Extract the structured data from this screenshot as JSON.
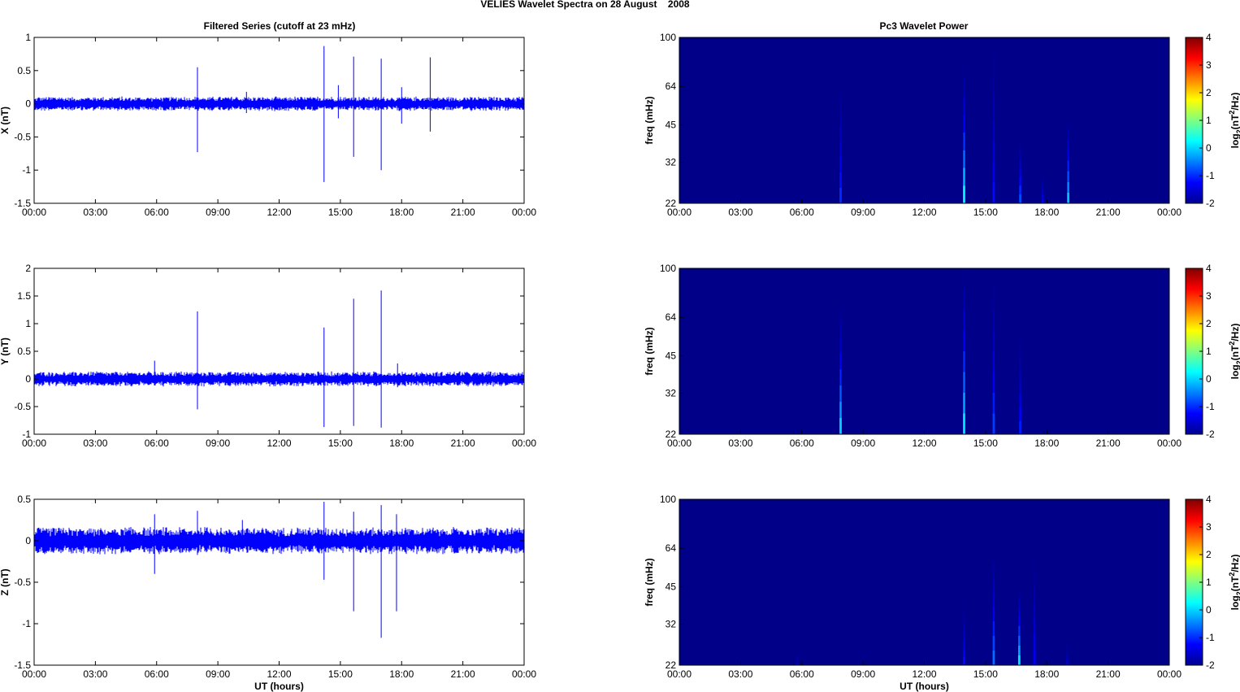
{
  "figure": {
    "title": "VELIES Wavelet Spectra on 28 August    2008",
    "left_column_title": "Filtered Series (cutoff at 23 mHz)",
    "right_column_title": "Pc3 Wavelet Power"
  },
  "chart_data": [
    {
      "type": "line",
      "component": "X",
      "ylabel": "X (nT)",
      "xlabel": "",
      "x_ticks": [
        "00:00",
        "03:00",
        "06:00",
        "09:00",
        "12:00",
        "15:00",
        "18:00",
        "21:00",
        "00:00"
      ],
      "xlim": [
        0,
        24
      ],
      "ylim": [
        -1.5,
        1
      ],
      "y_ticks": [
        1,
        0.5,
        0,
        -0.5,
        -1,
        -1.5
      ],
      "baseline_band": 0.08,
      "spikes": [
        {
          "t": 8.0,
          "max": 0.55,
          "min": -0.73
        },
        {
          "t": 14.2,
          "max": 0.87,
          "min": -1.18
        },
        {
          "t": 15.65,
          "max": 0.71,
          "min": -0.8
        },
        {
          "t": 17.0,
          "max": 0.68,
          "min": -1.0
        },
        {
          "t": 19.4,
          "max": 0.7,
          "min": -0.42
        },
        {
          "t": 14.9,
          "max": 0.28,
          "min": -0.22
        },
        {
          "t": 18.0,
          "max": 0.25,
          "min": -0.3
        },
        {
          "t": 10.4,
          "max": 0.18,
          "min": -0.14
        }
      ]
    },
    {
      "type": "line",
      "component": "Y",
      "ylabel": "Y (nT)",
      "xlabel": "",
      "x_ticks": [
        "00:00",
        "03:00",
        "06:00",
        "09:00",
        "12:00",
        "15:00",
        "18:00",
        "21:00",
        "00:00"
      ],
      "xlim": [
        0,
        24
      ],
      "ylim": [
        -1,
        2
      ],
      "y_ticks": [
        2,
        1.5,
        1,
        0.5,
        0,
        -0.5,
        -1
      ],
      "baseline_band": 0.1,
      "spikes": [
        {
          "t": 8.0,
          "max": 1.22,
          "min": -0.55
        },
        {
          "t": 14.2,
          "max": 0.93,
          "min": -0.87
        },
        {
          "t": 15.65,
          "max": 1.45,
          "min": -0.85
        },
        {
          "t": 17.0,
          "max": 1.6,
          "min": -0.88
        },
        {
          "t": 5.9,
          "max": 0.33,
          "min": -0.1
        },
        {
          "t": 17.8,
          "max": 0.28,
          "min": -0.15
        }
      ]
    },
    {
      "type": "line",
      "component": "Z",
      "ylabel": "Z (nT)",
      "xlabel": "UT (hours)",
      "x_ticks": [
        "00:00",
        "03:00",
        "06:00",
        "09:00",
        "12:00",
        "15:00",
        "18:00",
        "21:00",
        "00:00"
      ],
      "xlim": [
        0,
        24
      ],
      "ylim": [
        -1.5,
        0.5
      ],
      "y_ticks": [
        0.5,
        0,
        -0.5,
        -1,
        -1.5
      ],
      "baseline_band": 0.12,
      "spikes": [
        {
          "t": 5.9,
          "max": 0.32,
          "min": -0.4
        },
        {
          "t": 8.0,
          "max": 0.36,
          "min": -0.17
        },
        {
          "t": 14.2,
          "max": 0.47,
          "min": -0.47
        },
        {
          "t": 15.65,
          "max": 0.35,
          "min": -0.85
        },
        {
          "t": 17.0,
          "max": 0.43,
          "min": -1.17
        },
        {
          "t": 17.75,
          "max": 0.32,
          "min": -0.85
        },
        {
          "t": 10.2,
          "max": 0.25,
          "min": -0.1
        }
      ]
    },
    {
      "type": "heatmap",
      "component": "X",
      "ylabel": "freq (mHz)",
      "xlabel": "",
      "x_ticks": [
        "00:00",
        "03:00",
        "06:00",
        "09:00",
        "12:00",
        "15:00",
        "18:00",
        "21:00",
        "00:00"
      ],
      "xlim": [
        0,
        24
      ],
      "ylim": [
        22,
        100
      ],
      "y_scale": "log",
      "y_ticks": [
        100,
        64,
        45,
        32,
        22
      ],
      "colorbar_label": "log2(nT^2/Hz)",
      "colorbar_range": [
        -2,
        4
      ],
      "colorbar_ticks": [
        4,
        3,
        2,
        1,
        0,
        -1,
        -2
      ],
      "colormap": "jet",
      "background_value": -1.95,
      "streaks": [
        {
          "t": 7.9,
          "f_top": 68,
          "peak": -1.0
        },
        {
          "t": 13.95,
          "f_top": 80,
          "peak": 0.2
        },
        {
          "t": 15.4,
          "f_top": 100,
          "peak": -1.2
        },
        {
          "t": 16.7,
          "f_top": 42,
          "peak": -0.8
        },
        {
          "t": 17.8,
          "f_top": 30,
          "peak": -1.4
        },
        {
          "t": 19.05,
          "f_top": 48,
          "peak": -0.1
        }
      ]
    },
    {
      "type": "heatmap",
      "component": "Y",
      "ylabel": "freq (mHz)",
      "xlabel": "",
      "x_ticks": [
        "00:00",
        "03:00",
        "06:00",
        "09:00",
        "12:00",
        "15:00",
        "18:00",
        "21:00",
        "00:00"
      ],
      "xlim": [
        0,
        24
      ],
      "ylim": [
        22,
        100
      ],
      "y_scale": "log",
      "y_ticks": [
        100,
        64,
        45,
        32,
        22
      ],
      "colorbar_label": "log2(nT^2/Hz)",
      "colorbar_range": [
        -2,
        4
      ],
      "colorbar_ticks": [
        4,
        3,
        2,
        1,
        0,
        -1,
        -2
      ],
      "colormap": "jet",
      "background_value": -1.95,
      "streaks": [
        {
          "t": 7.9,
          "f_top": 72,
          "peak": 0.0
        },
        {
          "t": 13.95,
          "f_top": 100,
          "peak": 0.1
        },
        {
          "t": 15.4,
          "f_top": 100,
          "peak": -0.9
        },
        {
          "t": 16.7,
          "f_top": 58,
          "peak": -1.1
        }
      ]
    },
    {
      "type": "heatmap",
      "component": "Z",
      "ylabel": "freq (mHz)",
      "xlabel": "UT (hours)",
      "x_ticks": [
        "00:00",
        "03:00",
        "06:00",
        "09:00",
        "12:00",
        "15:00",
        "18:00",
        "21:00",
        "00:00"
      ],
      "xlim": [
        0,
        24
      ],
      "ylim": [
        22,
        100
      ],
      "y_scale": "log",
      "y_ticks": [
        100,
        64,
        45,
        32,
        22
      ],
      "colorbar_label": "log2(nT^2/Hz)",
      "colorbar_range": [
        -2,
        4
      ],
      "colorbar_ticks": [
        4,
        3,
        2,
        1,
        0,
        -1,
        -2
      ],
      "colormap": "jet",
      "background_value": -1.95,
      "streaks": [
        {
          "t": 5.8,
          "f_top": 26,
          "peak": -1.7
        },
        {
          "t": 13.95,
          "f_top": 40,
          "peak": -1.2
        },
        {
          "t": 15.4,
          "f_top": 64,
          "peak": -0.6
        },
        {
          "t": 16.65,
          "f_top": 45,
          "peak": 0.1
        },
        {
          "t": 17.4,
          "f_top": 68,
          "peak": -1.3
        },
        {
          "t": 19.0,
          "f_top": 28,
          "peak": -1.6
        }
      ]
    }
  ]
}
